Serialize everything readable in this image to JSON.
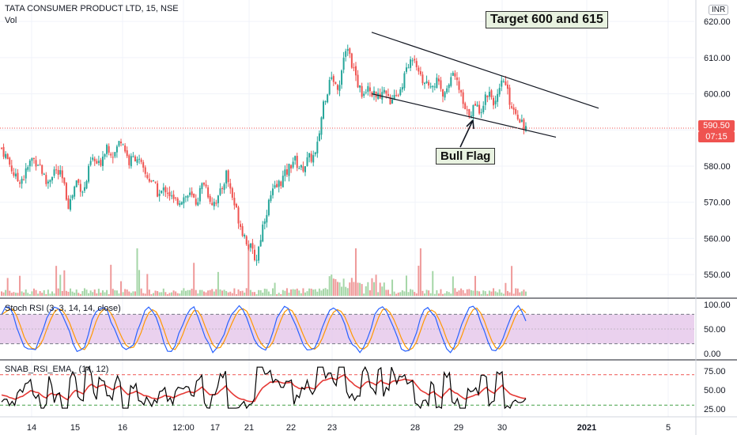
{
  "header": {
    "title": "TATA CONSUMER PRODUCT LTD, 15, NSE",
    "volume_label": "Vol",
    "currency_badge": "INR"
  },
  "annotations": {
    "target": "Target 600 and 615",
    "pattern": "Bull Flag"
  },
  "last_price": {
    "price": "590.50",
    "countdown": "07:15"
  },
  "indicators": {
    "stoch_label": "Stoch RSI (3, 3, 14, 14, close)",
    "snab_label": "SNAB_RSI_EMA_ (14, 12)"
  },
  "colors": {
    "up": "#26a69a",
    "down": "#ef5350",
    "stoch_k": "#2962ff",
    "stoch_d": "#ff9800",
    "stoch_band": "#e1bee7",
    "rsi_line": "#000000",
    "ema_line": "#e53935"
  },
  "chart_data": {
    "type": "candlestick",
    "price_axis": {
      "min": 545,
      "max": 622,
      "ticks": [
        550,
        560,
        570,
        580,
        590,
        600,
        610,
        620
      ]
    },
    "stoch_axis": {
      "min": 0,
      "max": 100,
      "ticks": [
        0,
        50,
        100
      ],
      "bands": [
        20,
        80
      ]
    },
    "snab_axis": {
      "min": 20,
      "max": 85,
      "ticks": [
        25,
        50,
        75
      ],
      "bands": [
        30,
        70
      ]
    },
    "x_labels": [
      "14",
      "15",
      "16",
      "12:00",
      "17",
      "21",
      "22",
      "23",
      "28",
      "29",
      "30",
      "2021",
      "5"
    ],
    "price_path": [
      585,
      581,
      576,
      577,
      582,
      581,
      575,
      579,
      577,
      569,
      576,
      573,
      582,
      580,
      586,
      583,
      588,
      581,
      583,
      578,
      576,
      572,
      574,
      570,
      571,
      572,
      570,
      576,
      570,
      571,
      578,
      570,
      563,
      558,
      554,
      565,
      572,
      575,
      578,
      582,
      579,
      582,
      583,
      598,
      604,
      602,
      614,
      607,
      600,
      603,
      598,
      602,
      597,
      600,
      606,
      611,
      605,
      601,
      604,
      599,
      606,
      602,
      594,
      596,
      596,
      601,
      597,
      604,
      597,
      594,
      590.5
    ],
    "trendlines": [
      {
        "from": [
          470,
          617
        ],
        "to": [
          757,
          596
        ]
      },
      {
        "from": [
          470,
          600
        ],
        "to": [
          703,
          588
        ]
      }
    ]
  }
}
